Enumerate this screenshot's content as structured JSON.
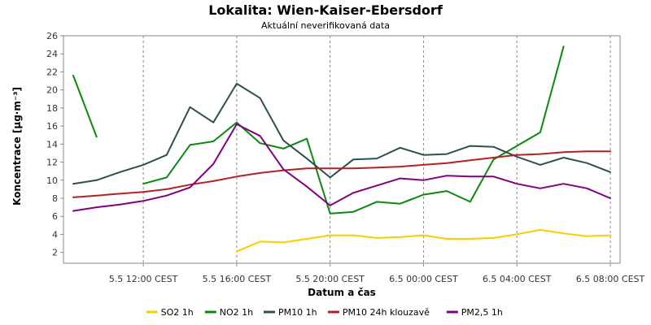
{
  "chart_data": {
    "type": "line",
    "title": "Lokalita: Wien-Kaiser-Ebersdorf",
    "subtitle": "Aktuální neverifikovaná data",
    "xlabel": "Datum a čas",
    "ylabel": "Koncentrace [µg·m⁻³]",
    "ylim": [
      0.8,
      26
    ],
    "yticks": [
      2,
      4,
      6,
      8,
      10,
      12,
      14,
      16,
      18,
      20,
      22,
      24,
      26
    ],
    "x": [
      "5.5 09:00",
      "5.5 10:00",
      "5.5 11:00",
      "5.5 12:00",
      "5.5 13:00",
      "5.5 14:00",
      "5.5 15:00",
      "5.5 16:00",
      "5.5 17:00",
      "5.5 18:00",
      "5.5 19:00",
      "5.5 20:00",
      "5.5 21:00",
      "5.5 22:00",
      "5.5 23:00",
      "6.5 00:00",
      "6.5 01:00",
      "6.5 02:00",
      "6.5 03:00",
      "6.5 04:00",
      "6.5 05:00",
      "6.5 06:00",
      "6.5 07:00",
      "6.5 08:00"
    ],
    "xticks": [
      {
        "at": "5.5 12:00",
        "label": "5.5 12:00 CEST"
      },
      {
        "at": "5.5 16:00",
        "label": "5.5 16:00 CEST"
      },
      {
        "at": "5.5 20:00",
        "label": "5.5 20:00 CEST"
      },
      {
        "at": "6.5 00:00",
        "label": "6.5 00:00 CEST"
      },
      {
        "at": "6.5 04:00",
        "label": "6.5 04:00 CEST"
      },
      {
        "at": "6.5 08:00",
        "label": "6.5 08:00 CEST"
      }
    ],
    "grid": true,
    "legend_position": "bottom",
    "series": [
      {
        "name": "SO2 1h",
        "color": "#f5d000",
        "values": [
          null,
          null,
          null,
          null,
          null,
          null,
          null,
          2.1,
          3.2,
          3.1,
          3.5,
          3.9,
          3.9,
          3.6,
          3.7,
          3.9,
          3.5,
          3.5,
          3.6,
          4.0,
          4.5,
          4.1,
          3.8,
          3.9
        ]
      },
      {
        "name": "NO2 1h",
        "color": "#0a8a0a",
        "values": [
          21.6,
          14.8,
          null,
          9.6,
          10.3,
          13.9,
          14.3,
          16.4,
          14.1,
          13.5,
          14.6,
          6.3,
          6.5,
          7.6,
          7.4,
          8.4,
          8.8,
          7.6,
          12.3,
          13.8,
          15.3,
          24.8,
          null,
          null
        ]
      },
      {
        "name": "PM10 1h",
        "color": "#2f4f4f",
        "values": [
          9.6,
          10.0,
          10.9,
          11.7,
          12.8,
          18.1,
          16.4,
          20.7,
          19.1,
          14.4,
          12.4,
          10.3,
          12.3,
          12.4,
          13.6,
          12.8,
          12.9,
          13.8,
          13.7,
          12.6,
          11.7,
          12.5,
          11.9,
          10.9
        ]
      },
      {
        "name": "PM10 24h klouzavě",
        "color": "#b22222",
        "values": [
          8.1,
          8.3,
          8.5,
          8.7,
          9.0,
          9.5,
          9.9,
          10.4,
          10.8,
          11.1,
          11.3,
          11.3,
          11.3,
          11.4,
          11.5,
          11.7,
          11.9,
          12.2,
          12.5,
          12.8,
          12.9,
          13.1,
          13.2,
          13.2
        ]
      },
      {
        "name": "PM2,5 1h",
        "color": "#800080",
        "values": [
          6.6,
          7.0,
          7.3,
          7.7,
          8.3,
          9.2,
          11.8,
          16.2,
          14.9,
          11.2,
          9.3,
          7.2,
          8.6,
          9.4,
          10.2,
          10.0,
          10.5,
          10.4,
          10.4,
          9.6,
          9.1,
          9.6,
          9.1,
          8.0
        ]
      }
    ]
  }
}
